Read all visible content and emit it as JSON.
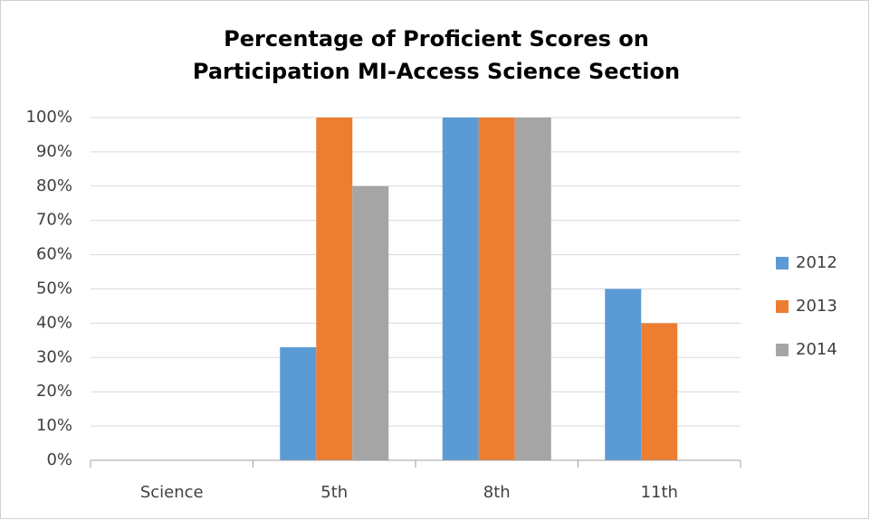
{
  "chart_data": {
    "type": "bar",
    "title": [
      "Percentage of Proficient Scores on",
      "Participation MI-Access Science Section"
    ],
    "categories": [
      "Science",
      "5th",
      "8th",
      "11th"
    ],
    "series": [
      {
        "name": "2012",
        "color": "#5b9bd5",
        "values": [
          null,
          33,
          100,
          50
        ]
      },
      {
        "name": "2013",
        "color": "#ed7d31",
        "values": [
          null,
          100,
          100,
          40
        ]
      },
      {
        "name": "2014",
        "color": "#a5a5a5",
        "values": [
          null,
          80,
          100,
          null
        ]
      }
    ],
    "ylim": [
      0,
      100
    ],
    "yticks": [
      {
        "value": 0,
        "label": "0%"
      },
      {
        "value": 10,
        "label": "10%"
      },
      {
        "value": 20,
        "label": "20%"
      },
      {
        "value": 30,
        "label": "30%"
      },
      {
        "value": 40,
        "label": "40%"
      },
      {
        "value": 50,
        "label": "50%"
      },
      {
        "value": 60,
        "label": "60%"
      },
      {
        "value": 70,
        "label": "70%"
      },
      {
        "value": 80,
        "label": "80%"
      },
      {
        "value": 90,
        "label": "90%"
      },
      {
        "value": 100,
        "label": "100%"
      }
    ],
    "grid": true,
    "legend": "right"
  }
}
